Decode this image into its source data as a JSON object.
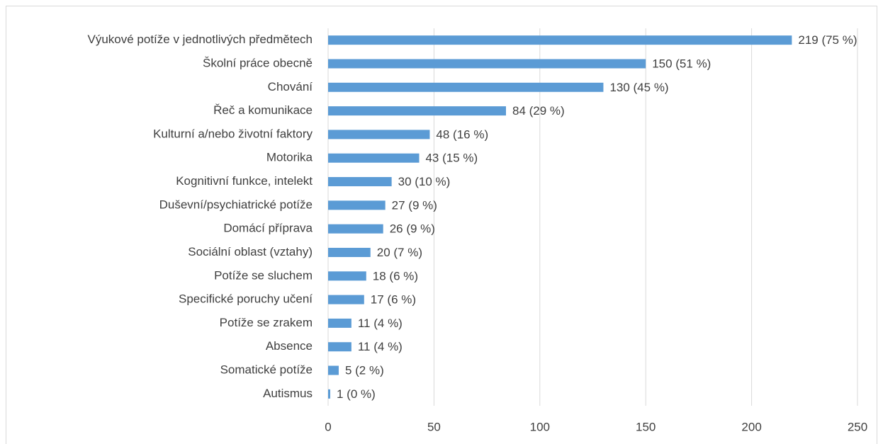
{
  "chart_data": {
    "type": "bar",
    "orientation": "horizontal",
    "categories": [
      "Výukové potíže v jednotlivých předmětech",
      "Školní práce obecně",
      "Chování",
      "Řeč a komunikace",
      "Kulturní a/nebo životní faktory",
      "Motorika",
      "Kognitivní funkce, intelekt",
      "Duševní/psychiatrické potíže",
      "Domácí příprava",
      "Sociální oblast (vztahy)",
      "Potíže se sluchem",
      "Specifické poruchy učení",
      "Potíže se zrakem",
      "Absence",
      "Somatické potíže",
      "Autismus"
    ],
    "values": [
      219,
      150,
      130,
      84,
      48,
      43,
      30,
      27,
      26,
      20,
      18,
      17,
      11,
      11,
      5,
      1
    ],
    "value_labels": [
      "219 (75 %)",
      "150 (51 %)",
      "130 (45 %)",
      "84 (29 %)",
      "48 (16 %)",
      "43 (15 %)",
      "30 (10 %)",
      "27 (9 %)",
      "26 (9 %)",
      "20 (7 %)",
      "18 (6 %)",
      "17 (6 %)",
      "11 (4 %)",
      "11 (4 %)",
      "5 (2 %)",
      "1 (0 %)"
    ],
    "color": "#5b9bd5",
    "xlim": [
      0,
      250
    ],
    "xticks": [
      0,
      50,
      100,
      150,
      200,
      250
    ],
    "grid": true
  }
}
